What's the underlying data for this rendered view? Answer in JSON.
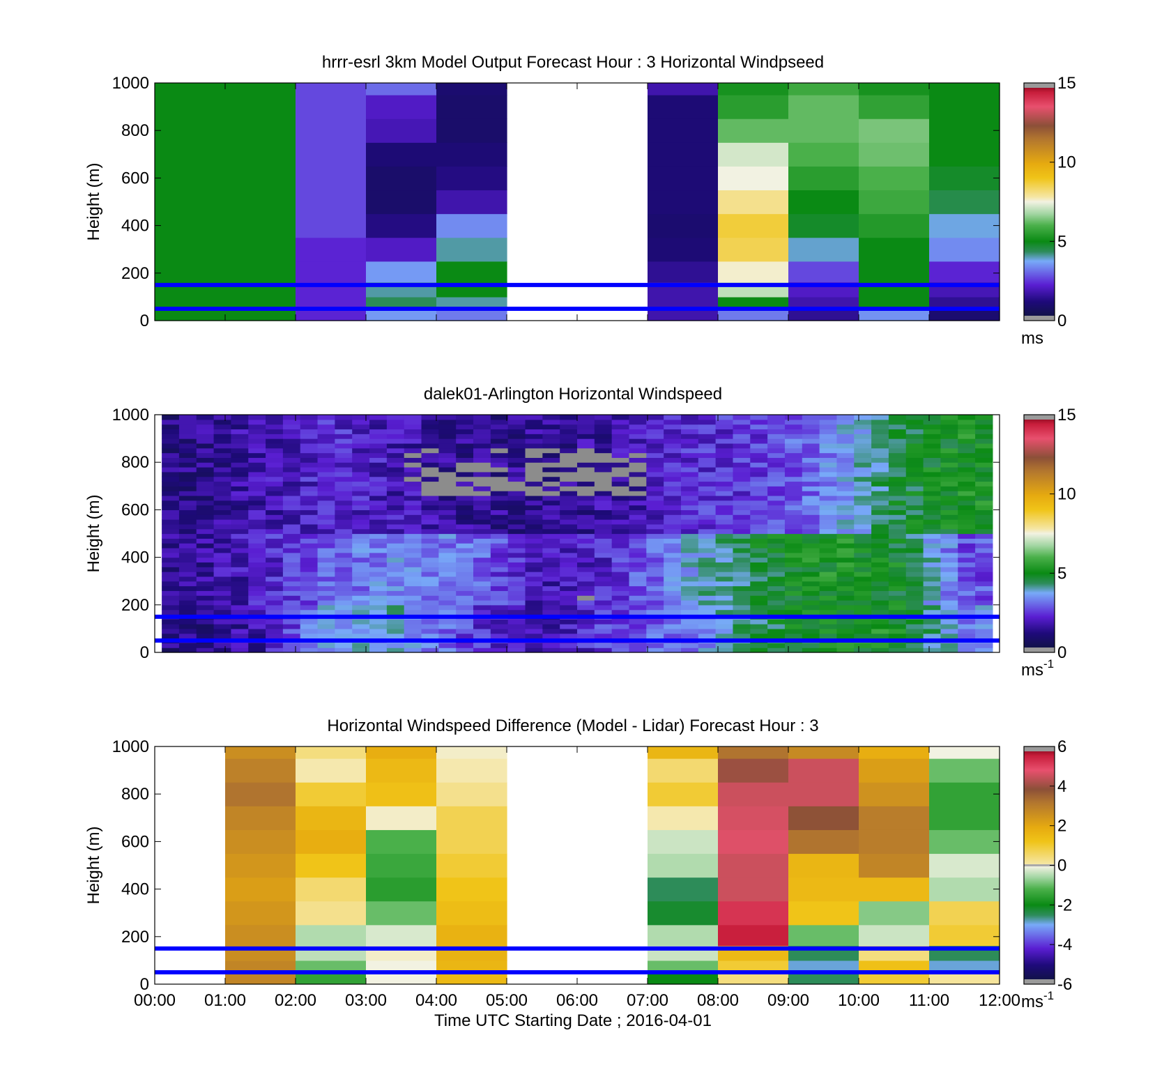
{
  "xlabel": "Time UTC  Starting Date ; 2016-04-01",
  "x_ticks": [
    "00:00",
    "01:00",
    "02:00",
    "03:00",
    "04:00",
    "05:00",
    "06:00",
    "07:00",
    "08:00",
    "09:00",
    "10:00",
    "11:00",
    "12:00"
  ],
  "reference_lines_m": [
    50,
    150
  ],
  "reference_line_color": "#0000ff",
  "chart_data": [
    {
      "type": "heatmap",
      "title": "hrrr-esrl 3km Model Output   Forecast Hour : 3 Horizontal Windpseed",
      "ylabel": "Height (m)",
      "ylim": [
        0,
        1000
      ],
      "yticks": [
        "0",
        "200",
        "400",
        "600",
        "800",
        "1000"
      ],
      "xlim_hours": [
        0,
        12
      ],
      "colorbar": {
        "unit": "ms",
        "unit_sup": "",
        "range": [
          0,
          15
        ],
        "ticks": [
          "0",
          "5",
          "10",
          "15"
        ]
      },
      "heights_m": [
        25,
        75,
        125,
        200,
        300,
        400,
        500,
        600,
        700,
        800,
        900,
        1000
      ],
      "columns_ms": [
        [
          5.0,
          5.0,
          5.0,
          5.0,
          5.0,
          5.0,
          5.0,
          5.0,
          5.0,
          5.0,
          5.0,
          5.0
        ],
        [
          5.0,
          5.0,
          5.0,
          5.0,
          5.0,
          5.0,
          5.0,
          5.0,
          5.0,
          5.0,
          5.0,
          5.0
        ],
        [
          2.0,
          2.0,
          2.0,
          2.0,
          2.0,
          2.4,
          2.4,
          2.4,
          2.4,
          2.4,
          2.4,
          2.4
        ],
        [
          3.4,
          4.4,
          4.0,
          3.4,
          1.8,
          1.0,
          0.6,
          0.6,
          0.8,
          1.6,
          1.8,
          2.8
        ],
        [
          3.0,
          4.0,
          5.0,
          5.0,
          4.0,
          3.2,
          1.5,
          1.0,
          0.8,
          0.6,
          0.6,
          0.7
        ],
        null,
        null,
        [
          1.5,
          1.5,
          1.5,
          1.2,
          0.8,
          0.7,
          0.8,
          0.8,
          0.8,
          0.8,
          0.8,
          1.5
        ],
        [
          3.0,
          5.0,
          7.0,
          7.6,
          8.5,
          8.7,
          8.0,
          7.5,
          7.2,
          6.2,
          5.5,
          5.2
        ],
        [
          1.2,
          1.5,
          1.8,
          2.4,
          3.8,
          4.8,
          5.0,
          5.5,
          6.0,
          6.2,
          6.2,
          5.8
        ],
        [
          3.3,
          5.0,
          5.0,
          5.0,
          5.0,
          5.4,
          5.8,
          6.0,
          6.3,
          6.4,
          5.6,
          5.2
        ],
        [
          0.7,
          1.2,
          1.6,
          2.0,
          3.2,
          3.7,
          4.5,
          4.8,
          5.0,
          5.0,
          5.0,
          5.0
        ]
      ]
    },
    {
      "type": "heatmap",
      "title": "dalek01-Arlington  Horizontal Windspeed",
      "ylabel": "Height (m)",
      "ylim": [
        0,
        1000
      ],
      "yticks": [
        "0",
        "200",
        "400",
        "600",
        "800",
        "1000"
      ],
      "xlim_hours": [
        0,
        12
      ],
      "data_extent_hours": [
        0.1,
        11.9
      ],
      "colorbar": {
        "unit": "ms",
        "unit_sup": "-1",
        "range": [
          0,
          15
        ],
        "ticks": [
          "0",
          "5",
          "10",
          "15"
        ]
      },
      "missing_regions": [
        {
          "hours": [
            3.6,
            7.1
          ],
          "heights_m": [
            670,
            850
          ]
        },
        {
          "hours": [
            5.9,
            6.6
          ],
          "heights_m": [
            200,
            240
          ]
        }
      ],
      "mean_speed_ms_rows_by_hour": {
        "hours": [
          0.5,
          1.5,
          2.5,
          3.5,
          4.5,
          5.5,
          6.5,
          7.5,
          8.5,
          9.5,
          10.5,
          11.5
        ],
        "below_200m": [
          1.0,
          1.5,
          3.4,
          3.8,
          2.2,
          1.2,
          2.4,
          2.8,
          4.4,
          5.0,
          5.2,
          3.2
        ],
        "200_to_500m": [
          1.2,
          1.8,
          2.8,
          3.2,
          3.0,
          1.5,
          2.0,
          3.4,
          4.6,
          5.2,
          5.0,
          2.5
        ],
        "500_to_1000m": [
          1.0,
          1.5,
          2.0,
          1.6,
          1.2,
          1.2,
          1.4,
          2.0,
          2.2,
          3.0,
          4.5,
          5.2
        ]
      }
    },
    {
      "type": "heatmap",
      "title": "Horizontal Windspeed Difference (Model - Lidar) Forecast Hour : 3",
      "ylabel": "Height (m)",
      "ylim": [
        0,
        1000
      ],
      "yticks": [
        "0",
        "200",
        "400",
        "600",
        "800",
        "1000"
      ],
      "xlim_hours": [
        0,
        12
      ],
      "colorbar": {
        "unit": "ms",
        "unit_sup": "-1",
        "range": [
          -6,
          6
        ],
        "ticks": [
          "-6",
          "-4",
          "-2",
          "0",
          "2",
          "4",
          "6"
        ]
      },
      "heights_m": [
        25,
        75,
        125,
        200,
        300,
        400,
        500,
        600,
        700,
        800,
        900,
        1000
      ],
      "columns_ms": [
        null,
        [
          2.8,
          2.8,
          2.6,
          2.6,
          2.4,
          2.2,
          2.4,
          2.6,
          2.8,
          3.2,
          2.9,
          2.6
        ],
        [
          -1.5,
          -1.0,
          -0.4,
          -0.5,
          0.4,
          0.6,
          1.2,
          1.8,
          1.6,
          1.0,
          0.2,
          0.5
        ],
        [
          0.0,
          0.0,
          0.1,
          -0.2,
          -1.0,
          -1.6,
          -1.4,
          -1.2,
          0.1,
          1.3,
          1.5,
          1.8
        ],
        [
          1.5,
          1.6,
          1.7,
          1.7,
          1.4,
          1.2,
          1.0,
          0.8,
          0.8,
          0.4,
          0.2,
          0.1
        ],
        null,
        null,
        [
          -2.0,
          -1.0,
          -0.3,
          -0.5,
          -2.2,
          -2.5,
          -0.5,
          -0.3,
          0.2,
          1.0,
          0.6,
          1.6
        ],
        [
          0.5,
          1.0,
          1.5,
          5.5,
          5.2,
          4.5,
          4.5,
          4.7,
          4.6,
          4.5,
          4.0,
          3.2
        ],
        [
          -2.5,
          -3.0,
          -2.5,
          -1.0,
          1.2,
          1.5,
          1.6,
          3.2,
          3.8,
          4.5,
          4.5,
          2.7
        ],
        [
          1.0,
          1.3,
          0.5,
          -0.3,
          -0.8,
          1.5,
          2.8,
          3.0,
          3.0,
          2.5,
          2.2,
          1.8
        ],
        [
          0.3,
          -3.0,
          -2.5,
          1.0,
          0.8,
          -0.5,
          -0.2,
          -1.0,
          -1.5,
          -1.5,
          -1.0,
          0.0
        ]
      ]
    }
  ]
}
